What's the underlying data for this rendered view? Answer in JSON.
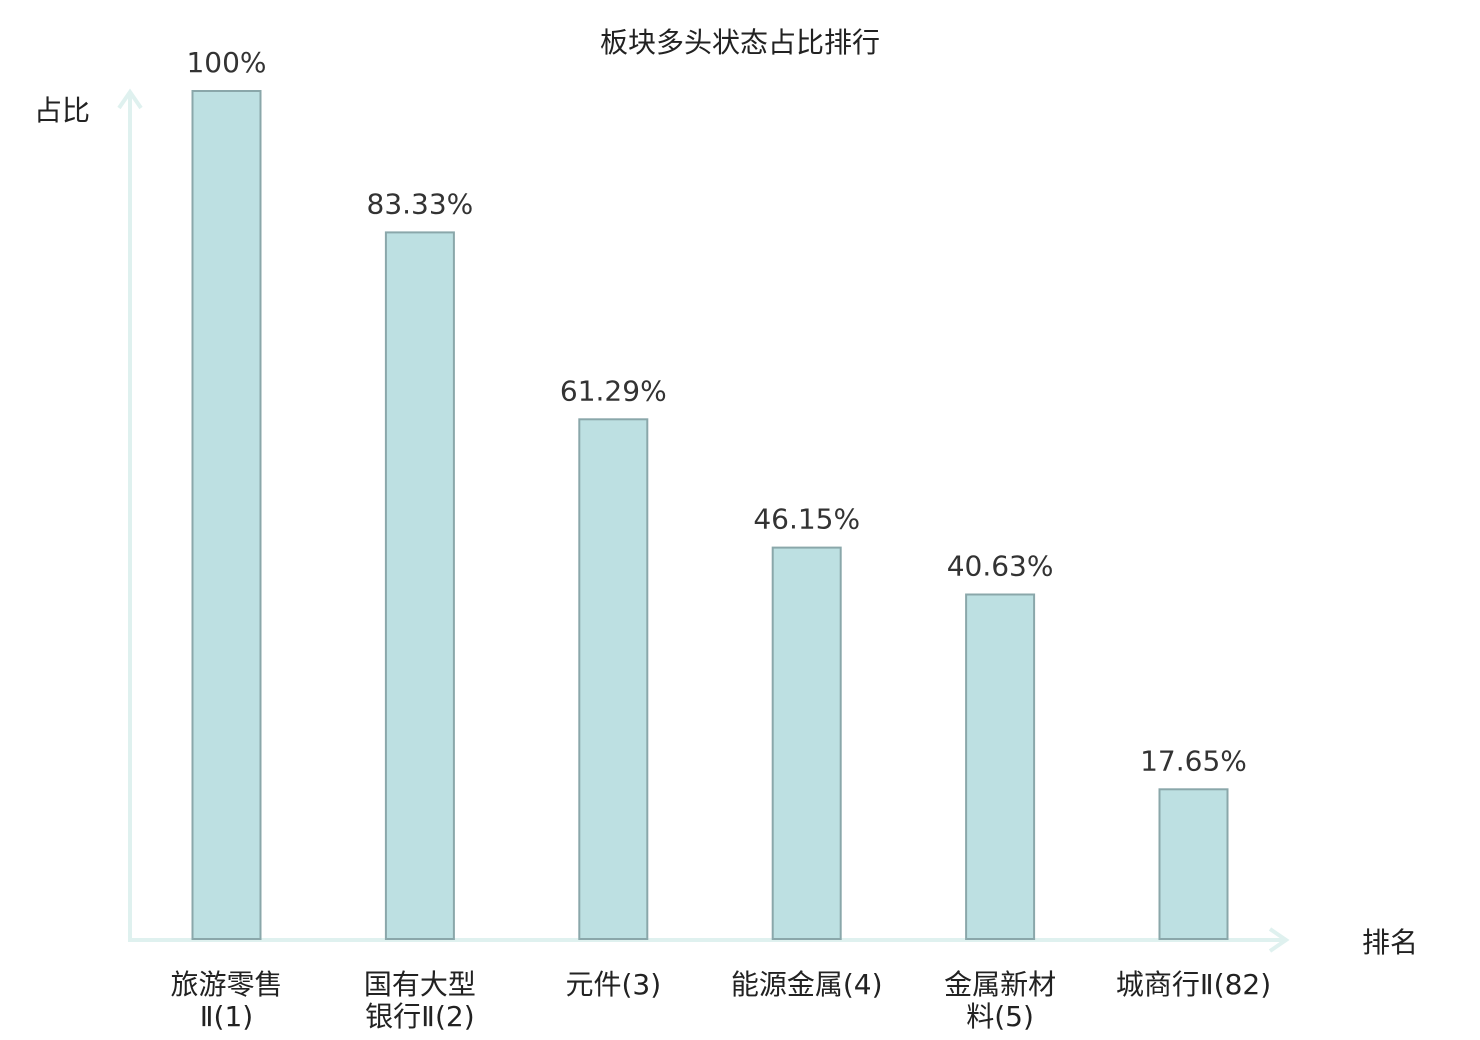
{
  "chart_data": {
    "type": "bar",
    "title": "板块多头状态占比排行",
    "ylabel": "占比",
    "xlabel": "排名",
    "ylim": [
      0,
      100
    ],
    "grid": false,
    "categories": [
      [
        "旅游零售",
        "Ⅱ(1)"
      ],
      [
        "国有大型",
        "银行Ⅱ(2)"
      ],
      [
        "元件(3)"
      ],
      [
        "能源金属(4)"
      ],
      [
        "金属新材",
        "料(5)"
      ],
      [
        "城商行Ⅱ(82)"
      ]
    ],
    "values": [
      100,
      83.33,
      61.29,
      46.15,
      40.63,
      17.65
    ],
    "value_labels": [
      "100%",
      "83.33%",
      "61.29%",
      "46.15%",
      "40.63%",
      "17.65%"
    ],
    "highlight_index": 5,
    "colors": {
      "bar_fill": "#bde0e2",
      "bar_stroke": "#8aa7aa",
      "axis": "#dff1ef",
      "highlight_text": "#e0141e",
      "text": "#222222"
    }
  }
}
